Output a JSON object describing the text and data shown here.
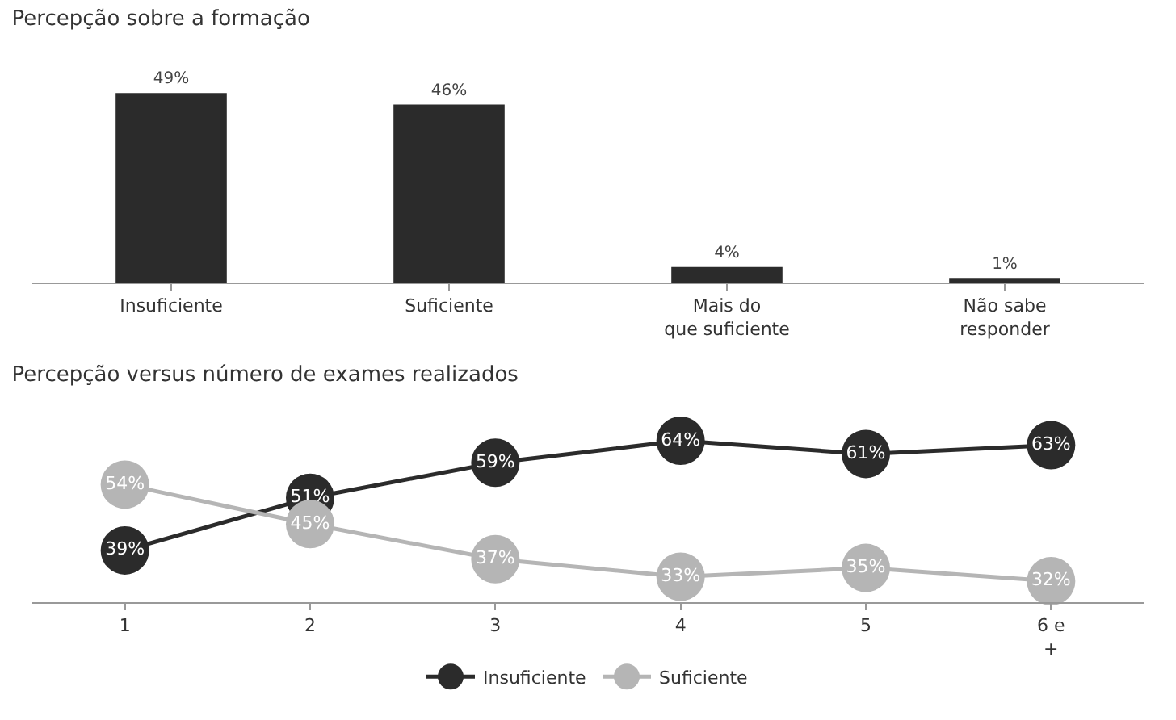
{
  "chart_data": [
    {
      "type": "bar",
      "title": "Percepção sobre a formação",
      "categories": [
        "Insuficiente",
        "Suficiente",
        "Mais do que suficiente",
        "Não sabe responder"
      ],
      "values": [
        49,
        46,
        4,
        1
      ],
      "value_labels": [
        "49%",
        "46%",
        "4%",
        "1%"
      ],
      "color": "#2b2b2b",
      "tick_labels": "x",
      "grid": false,
      "legend": false
    },
    {
      "type": "line",
      "title": "Percepção versus número de exames realizados",
      "categories": [
        "1",
        "2",
        "3",
        "4",
        "5",
        "6 e +"
      ],
      "series": [
        {
          "name": "Insuficiente",
          "color": "#2b2b2b",
          "values": [
            39,
            51,
            59,
            64,
            61,
            63
          ],
          "value_labels": [
            "39%",
            "51%",
            "59%",
            "64%",
            "61%",
            "63%"
          ]
        },
        {
          "name": "Suficiente",
          "color": "#b5b5b5",
          "values": [
            54,
            45,
            37,
            33,
            35,
            32
          ],
          "value_labels": [
            "54%",
            "45%",
            "37%",
            "33%",
            "35%",
            "32%"
          ]
        }
      ],
      "marker": "circle",
      "line_style": "solid",
      "tick_labels": "x",
      "grid": false,
      "legend": "bottom"
    }
  ]
}
